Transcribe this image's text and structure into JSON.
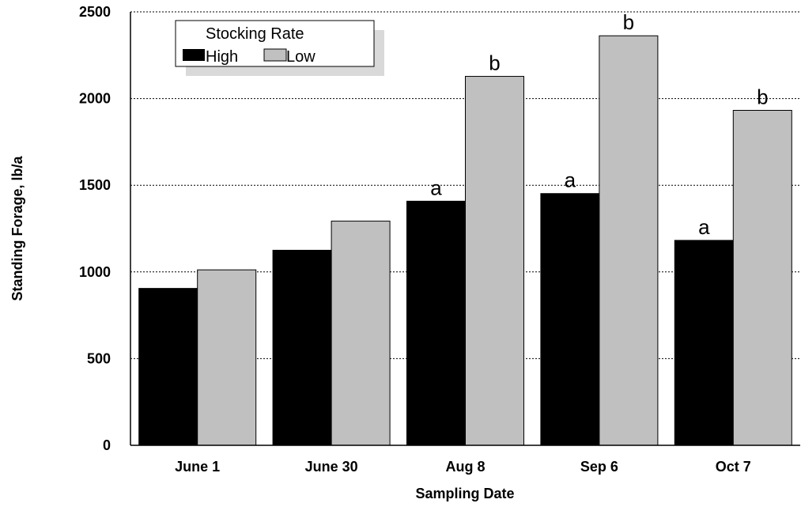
{
  "chart_data": {
    "type": "bar",
    "categories": [
      "June 1",
      "June 30",
      "Aug 8",
      "Sep 6",
      "Oct 7"
    ],
    "series": [
      {
        "name": "High",
        "values": [
          905,
          1125,
          1408,
          1452,
          1182
        ],
        "color": "#000000",
        "labels": [
          "",
          "",
          "a",
          "a",
          "a"
        ]
      },
      {
        "name": "Low",
        "values": [
          1012,
          1293,
          2128,
          2362,
          1932
        ],
        "color": "#c0c0c0",
        "labels": [
          "",
          "",
          "b",
          "b",
          "b"
        ]
      }
    ],
    "xlabel": "Sampling Date",
    "ylabel": "Standing Forage, lb/a",
    "ylim": [
      0,
      2500
    ],
    "yticks": [
      "0",
      "500",
      "1000",
      "1500",
      "2000",
      "2500"
    ],
    "legend": {
      "title": "Stocking Rate",
      "placement": "top-left"
    },
    "grid": "horizontal dashed"
  }
}
